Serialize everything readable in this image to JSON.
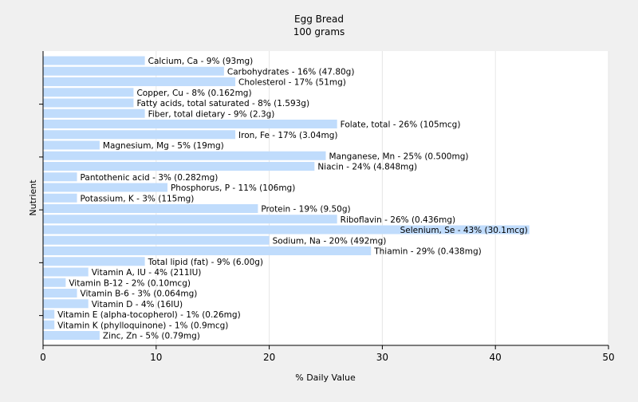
{
  "chart_data": {
    "type": "bar",
    "orientation": "horizontal",
    "title": "Egg Bread",
    "subtitle": "100 grams",
    "xlabel": "% Daily Value",
    "ylabel": "Nutrient",
    "xlim": [
      0,
      50
    ],
    "xticks": [
      0,
      10,
      20,
      30,
      40,
      50
    ],
    "grid": true,
    "categories": [
      "Calcium, Ca",
      "Carbohydrates",
      "Cholesterol",
      "Copper, Cu",
      "Fatty acids, total saturated",
      "Fiber, total dietary",
      "Folate, total",
      "Iron, Fe",
      "Magnesium, Mg",
      "Manganese, Mn",
      "Niacin",
      "Pantothenic acid",
      "Phosphorus, P",
      "Potassium, K",
      "Protein",
      "Riboflavin",
      "Selenium, Se",
      "Sodium, Na",
      "Thiamin",
      "Total lipid (fat)",
      "Vitamin A, IU",
      "Vitamin B-12",
      "Vitamin B-6",
      "Vitamin D",
      "Vitamin E (alpha-tocopherol)",
      "Vitamin K (phylloquinone)",
      "Zinc, Zn"
    ],
    "values": [
      9,
      16,
      17,
      8,
      8,
      9,
      26,
      17,
      5,
      25,
      24,
      3,
      11,
      3,
      19,
      26,
      43,
      20,
      29,
      9,
      4,
      2,
      3,
      4,
      1,
      1,
      5
    ],
    "labels": [
      "Calcium, Ca - 9% (93mg)",
      "Carbohydrates - 16% (47.80g)",
      "Cholesterol - 17% (51mg)",
      "Copper, Cu - 8% (0.162mg)",
      "Fatty acids, total saturated - 8% (1.593g)",
      "Fiber, total dietary - 9% (2.3g)",
      "Folate, total - 26% (105mcg)",
      "Iron, Fe - 17% (3.04mg)",
      "Magnesium, Mg - 5% (19mg)",
      "Manganese, Mn - 25% (0.500mg)",
      "Niacin - 24% (4.848mg)",
      "Pantothenic acid - 3% (0.282mg)",
      "Phosphorus, P - 11% (106mg)",
      "Potassium, K - 3% (115mg)",
      "Protein - 19% (9.50g)",
      "Riboflavin - 26% (0.436mg)",
      "Selenium, Se - 43% (30.1mcg)",
      "Sodium, Na - 20% (492mg)",
      "Thiamin - 29% (0.438mg)",
      "Total lipid (fat) - 9% (6.00g)",
      "Vitamin A, IU - 4% (211IU)",
      "Vitamin B-12 - 2% (0.10mcg)",
      "Vitamin B-6 - 3% (0.064mg)",
      "Vitamin D - 4% (16IU)",
      "Vitamin E (alpha-tocopherol) - 1% (0.26mg)",
      "Vitamin K (phylloquinone) - 1% (0.9mcg)",
      "Zinc, Zn - 5% (0.79mg)"
    ],
    "colors": {
      "background": "#f0f0f0",
      "plot_background": "#ffffff",
      "bar": "#c0dcfc",
      "text": "#000000",
      "grid": "#e6e6e6",
      "axis": "#000000"
    }
  }
}
